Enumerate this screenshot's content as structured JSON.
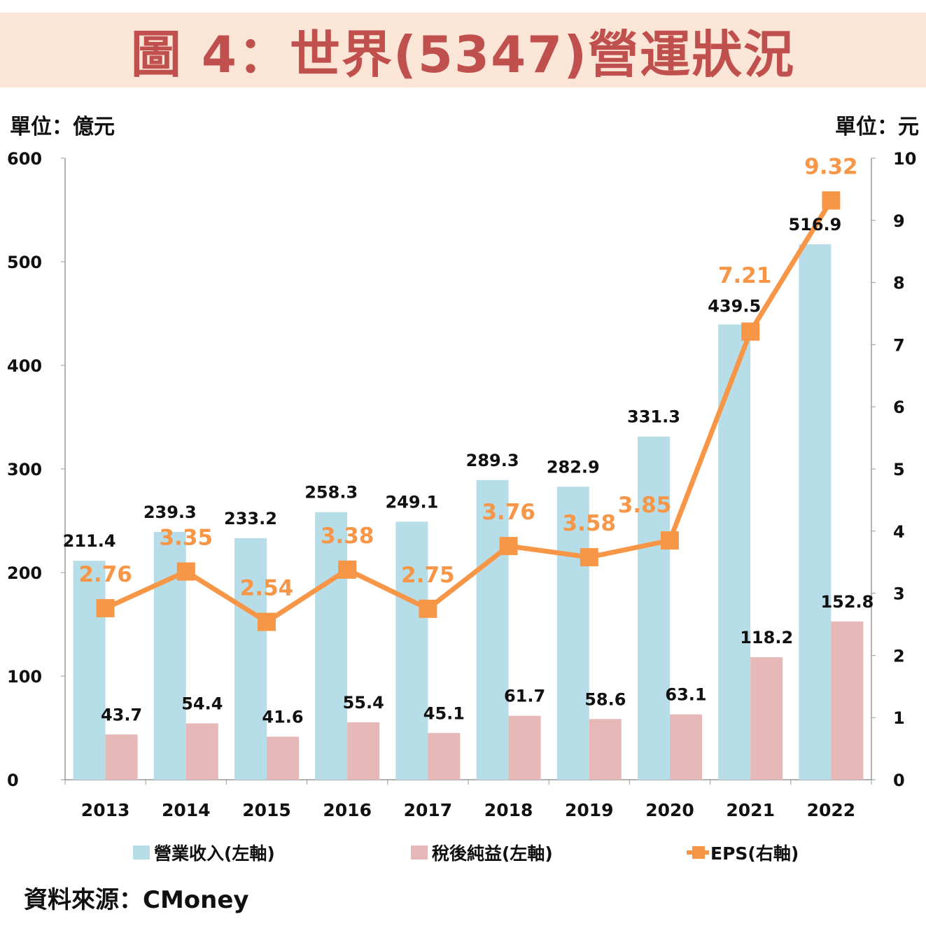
{
  "title": "圖 4：世界(5347)營運狀況",
  "left_unit": "單位：億元",
  "right_unit": "單位：元",
  "source": "資料來源：CMoney",
  "colors": {
    "revenue": "#b7dde8",
    "net_income": "#e6b9b8",
    "eps": "#f79646",
    "title": "#c0504d",
    "title_bg": "#fbe5d6"
  },
  "chart_data": {
    "type": "bar+line",
    "categories": [
      "2013",
      "2014",
      "2015",
      "2016",
      "2017",
      "2018",
      "2019",
      "2020",
      "2021",
      "2022"
    ],
    "series": [
      {
        "name": "營業收入(左軸)",
        "type": "bar",
        "axis": "left",
        "values": [
          211.4,
          239.3,
          233.2,
          258.3,
          249.1,
          289.3,
          282.9,
          331.3,
          439.5,
          516.9
        ]
      },
      {
        "name": "稅後純益(左軸)",
        "type": "bar",
        "axis": "left",
        "values": [
          43.7,
          54.4,
          41.6,
          55.4,
          45.1,
          61.7,
          58.6,
          63.1,
          118.2,
          152.8
        ]
      },
      {
        "name": "EPS(右軸)",
        "type": "line",
        "axis": "right",
        "values": [
          2.76,
          3.35,
          2.54,
          3.38,
          2.75,
          3.76,
          3.58,
          3.85,
          7.21,
          9.32
        ]
      }
    ],
    "left_axis": {
      "ylim": [
        0,
        600
      ],
      "ticks": [
        "0",
        "100",
        "200",
        "300",
        "400",
        "500",
        "600"
      ]
    },
    "right_axis": {
      "ylim": [
        0,
        10
      ],
      "ticks": [
        "0",
        "1",
        "2",
        "3",
        "4",
        "5",
        "6",
        "7",
        "8",
        "9",
        "10"
      ]
    },
    "grid": false,
    "legend_position": "bottom"
  }
}
